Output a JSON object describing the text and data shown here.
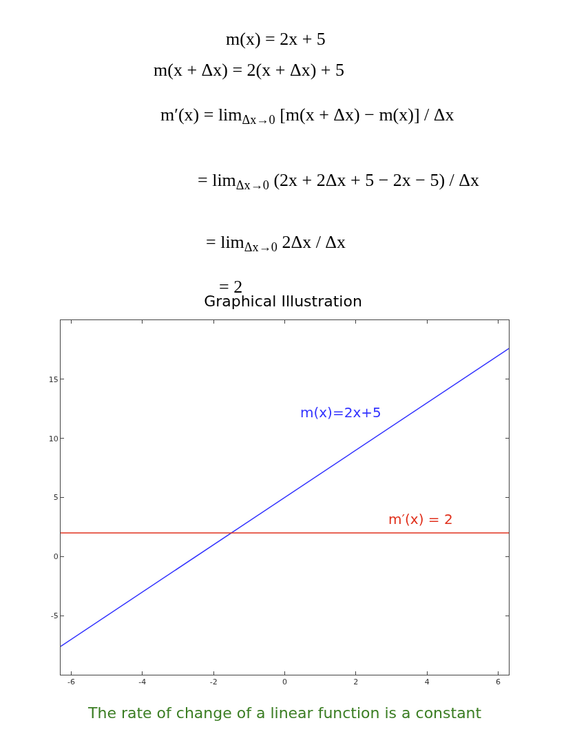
{
  "chart_data": {
    "type": "line",
    "title": "Graphical Illustration",
    "x": [
      -6.3,
      6.3
    ],
    "series": [
      {
        "name": "m(x)=2x+5",
        "color": "#3333ff",
        "values": [
          -7.6,
          17.6
        ]
      },
      {
        "name": "m′(x) = 2",
        "color": "#e0301c",
        "values": [
          2,
          2
        ]
      }
    ],
    "xlim": [
      -6.3,
      6.3
    ],
    "ylim": [
      -10,
      20
    ],
    "xticks": [
      -6,
      -4,
      -2,
      0,
      2,
      4,
      6
    ],
    "yticks": [
      {
        "value": -10,
        "label": null
      },
      -5,
      0,
      5,
      10,
      15,
      {
        "value": 20,
        "label": null
      }
    ],
    "grid": false,
    "legend": false,
    "marker": "none",
    "line_style": "solid",
    "annotations": [
      "m(x) = 2x + 5",
      "m(x + Δx) = 2(x + Δx) + 5",
      "m′(x) = lim$_{Δx→0}$ [m(x + Δx) − m(x)] / Δx",
      "= lim$_{Δx→0}$ (2x + 2Δx + 5 − 2x − 5) / Δx",
      "= lim$_{Δx→0}$ 2Δx / Δx",
      "= 2",
      "The rate of change of a linear function is a constant"
    ]
  }
}
